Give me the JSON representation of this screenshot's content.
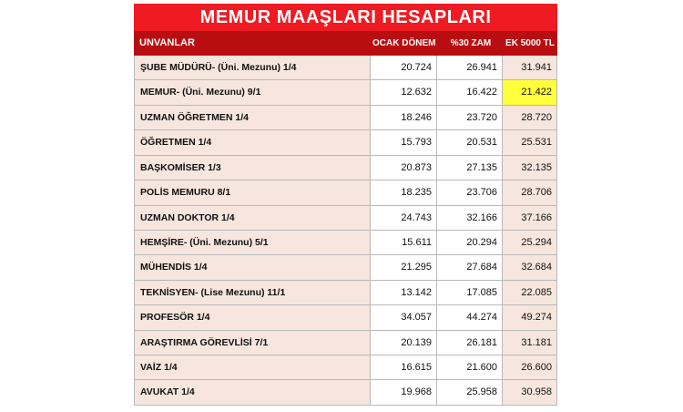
{
  "title": "MEMUR MAAŞLARI HESAPLARI",
  "headers": {
    "unvanlar": "UNVANLAR",
    "ocak": "OCAK DÖNEMİ",
    "zam": "%30 ZAM",
    "ek": "EK 5000 TL"
  },
  "highlight_color": "#ffff3b",
  "rows": [
    {
      "name": "ŞUBE MÜDÜRÜ- (Üni. Mezunu) 1/4",
      "ocak": "20.724",
      "zam": "26.941",
      "ek": "31.941"
    },
    {
      "name": "MEMUR- (Üni. Mezunu) 9/1",
      "ocak": "12.632",
      "zam": "16.422",
      "ek": "21.422",
      "highlight": true
    },
    {
      "name": "UZMAN ÖĞRETMEN 1/4",
      "ocak": "18.246",
      "zam": "23.720",
      "ek": "28.720"
    },
    {
      "name": "ÖĞRETMEN 1/4",
      "ocak": "15.793",
      "zam": "20.531",
      "ek": "25.531"
    },
    {
      "name": "BAŞKOMİSER 1/3",
      "ocak": "20.873",
      "zam": "27.135",
      "ek": "32.135"
    },
    {
      "name": "POLİS MEMURU 8/1",
      "ocak": "18.235",
      "zam": "23.706",
      "ek": "28.706"
    },
    {
      "name": "UZMAN DOKTOR 1/4",
      "ocak": "24.743",
      "zam": "32.166",
      "ek": "37.166"
    },
    {
      "name": "HEMŞİRE- (Üni. Mezunu) 5/1",
      "ocak": "15.611",
      "zam": "20.294",
      "ek": "25.294"
    },
    {
      "name": "MÜHENDİS 1/4",
      "ocak": "21.295",
      "zam": "27.684",
      "ek": "32.684"
    },
    {
      "name": "TEKNİSYEN- (Lise Mezunu) 11/1",
      "ocak": "13.142",
      "zam": "17.085",
      "ek": "22.085"
    },
    {
      "name": "PROFESÖR 1/4",
      "ocak": "34.057",
      "zam": "44.274",
      "ek": "49.274"
    },
    {
      "name": "ARAŞTIRMA GÖREVLİSİ 7/1",
      "ocak": "20.139",
      "zam": "26.181",
      "ek": "31.181"
    },
    {
      "name": "VAİZ 1/4",
      "ocak": "16.615",
      "zam": "21.600",
      "ek": "26.600"
    },
    {
      "name": "AVUKAT 1/4",
      "ocak": "19.968",
      "zam": "25.958",
      "ek": "30.958"
    }
  ]
}
